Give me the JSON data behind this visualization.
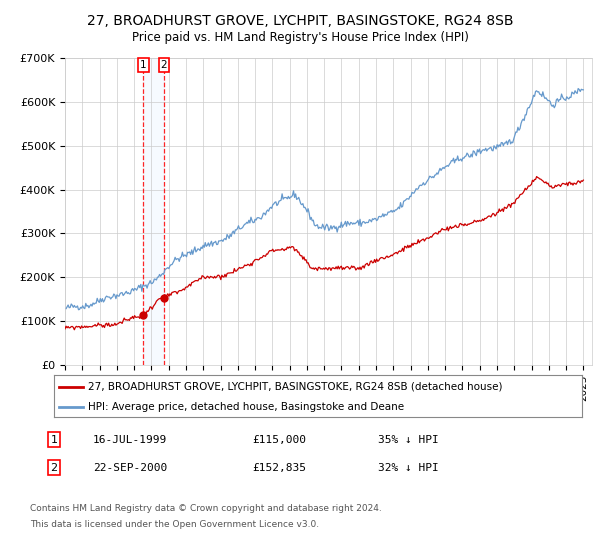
{
  "title": "27, BROADHURST GROVE, LYCHPIT, BASINGSTOKE, RG24 8SB",
  "subtitle": "Price paid vs. HM Land Registry's House Price Index (HPI)",
  "title_fontsize": 10,
  "subtitle_fontsize": 8.5,
  "ylim": [
    0,
    700000
  ],
  "yticks": [
    0,
    100000,
    200000,
    300000,
    400000,
    500000,
    600000,
    700000
  ],
  "ytick_labels": [
    "£0",
    "£100K",
    "£200K",
    "£300K",
    "£400K",
    "£500K",
    "£600K",
    "£700K"
  ],
  "xlim_start": 1995.0,
  "xlim_end": 2025.5,
  "background_color": "#ffffff",
  "grid_color": "#cccccc",
  "hpi_color": "#6699cc",
  "price_color": "#cc0000",
  "legend_label_price": "27, BROADHURST GROVE, LYCHPIT, BASINGSTOKE, RG24 8SB (detached house)",
  "legend_label_hpi": "HPI: Average price, detached house, Basingstoke and Deane",
  "transaction1_num": "1",
  "transaction1_date": "16-JUL-1999",
  "transaction1_price": "£115,000",
  "transaction1_hpi": "35% ↓ HPI",
  "transaction1_year": 1999.54,
  "transaction1_value": 115000,
  "transaction2_num": "2",
  "transaction2_date": "22-SEP-2000",
  "transaction2_price": "£152,835",
  "transaction2_hpi": "32% ↓ HPI",
  "transaction2_year": 2000.72,
  "transaction2_value": 152835,
  "footer1": "Contains HM Land Registry data © Crown copyright and database right 2024.",
  "footer2": "This data is licensed under the Open Government Licence v3.0.",
  "shade_color": "#ddeeff"
}
